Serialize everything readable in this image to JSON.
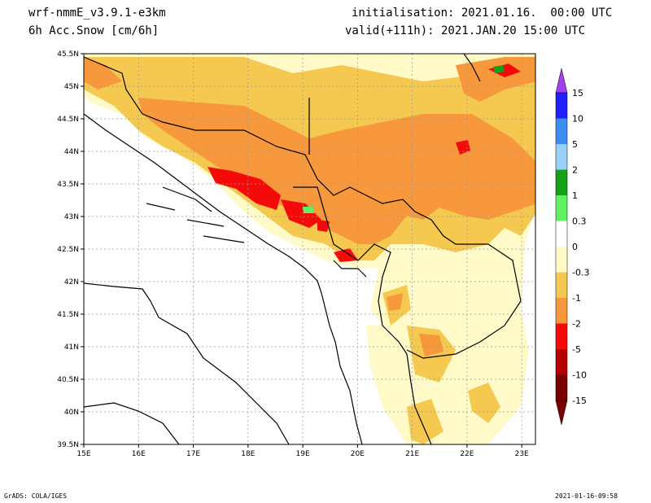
{
  "header": {
    "model": "wrf-nmmE_v3.9.1-e3km",
    "field": "6h Acc.Snow [cm/6h]",
    "init": "initialisation: 2021.01.16.  00:00 UTC",
    "valid": "valid(+111h): 2021.JAN.20 15:00 UTC"
  },
  "axes": {
    "x_ticks": [
      "15E",
      "16E",
      "17E",
      "18E",
      "19E",
      "20E",
      "21E",
      "22E",
      "23E"
    ],
    "y_ticks": [
      "45.5N",
      "45N",
      "44.5N",
      "44N",
      "43.5N",
      "43N",
      "42.5N",
      "42N",
      "41.5N",
      "41N",
      "40.5N",
      "40N",
      "39.5N"
    ],
    "xlim": [
      15,
      23.25
    ],
    "ylim": [
      39.5,
      45.5
    ]
  },
  "colorbar": {
    "labels": [
      "15",
      "10",
      "5",
      "2",
      "1",
      "0.3",
      "0",
      "-0.3",
      "-1",
      "-2",
      "-5",
      "-10",
      "-15"
    ],
    "colors": [
      "#2020ff",
      "#3d8cf0",
      "#9ad0f8",
      "#16a01a",
      "#5ff064",
      "#ffffff",
      "#ffffff",
      "#fffac8",
      "#f5c850",
      "#f7983c",
      "#f50a0a",
      "#b40000",
      "#7a0000"
    ],
    "top_arrow_color": "#a040f0",
    "bottom_arrow_color": "#7a0000"
  },
  "footer": {
    "left": "GrADS: COLA/IGES",
    "right": "2021-01-16-09:58"
  }
}
